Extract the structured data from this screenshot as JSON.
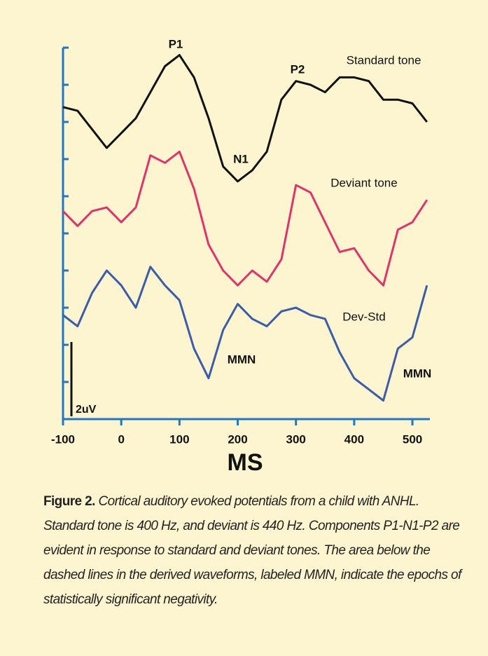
{
  "chart_data": {
    "type": "line",
    "x_label": "MS",
    "x": [
      -100,
      -75,
      -50,
      -25,
      0,
      25,
      50,
      75,
      100,
      125,
      150,
      175,
      200,
      225,
      250,
      275,
      300,
      325,
      350,
      375,
      400,
      425,
      450,
      475,
      500,
      525
    ],
    "series": [
      {
        "name": "Standard tone",
        "color": "#111111",
        "values": [
          8.4,
          8.3,
          7.8,
          7.3,
          7.7,
          8.1,
          8.8,
          9.5,
          9.8,
          9.2,
          8.1,
          6.8,
          6.4,
          6.7,
          7.2,
          8.6,
          9.1,
          9.0,
          8.8,
          9.2,
          9.2,
          9.1,
          8.6,
          8.6,
          8.5,
          8.0
        ]
      },
      {
        "name": "Deviant tone",
        "color": "#e0336a",
        "values": [
          5.6,
          5.2,
          5.6,
          5.7,
          5.3,
          5.7,
          7.1,
          6.9,
          7.2,
          6.2,
          4.7,
          4.0,
          3.6,
          4.0,
          3.7,
          4.3,
          6.3,
          6.1,
          5.3,
          4.5,
          4.6,
          4.0,
          3.6,
          5.1,
          5.3,
          5.9
        ]
      },
      {
        "name": "Dev-Std",
        "color": "#3b5bab",
        "values": [
          2.8,
          2.5,
          3.4,
          4.0,
          3.6,
          3.0,
          4.1,
          3.6,
          3.2,
          1.9,
          1.1,
          2.4,
          3.1,
          2.7,
          2.5,
          2.9,
          3.0,
          2.8,
          2.7,
          1.8,
          1.1,
          0.8,
          0.5,
          1.9,
          2.2,
          3.6
        ]
      }
    ],
    "annotations": [
      "P1",
      "N1",
      "P2",
      "MMN",
      "MMN"
    ],
    "scale_bar": {
      "value": 2,
      "label": "2uV"
    },
    "xlim": [
      -100,
      530
    ],
    "xticks": [
      -100,
      0,
      100,
      200,
      300,
      400,
      500
    ],
    "ylim": [
      0,
      10
    ],
    "yticks": [
      0,
      1,
      2,
      3,
      4,
      5,
      6,
      7,
      8,
      9,
      10
    ],
    "axis_color": "#1f78c1"
  },
  "caption": {
    "label": "Figure 2.",
    "text": "Cortical auditory evoked potentials from a child with ANHL. Standard tone is 400 Hz, and deviant is 440 Hz. Components P1-N1-P2 are evident in response to standard and deviant tones. The area below the dashed lines in the derived waveforms, labeled MMN, indicate the epochs of statistically significant negativity."
  }
}
